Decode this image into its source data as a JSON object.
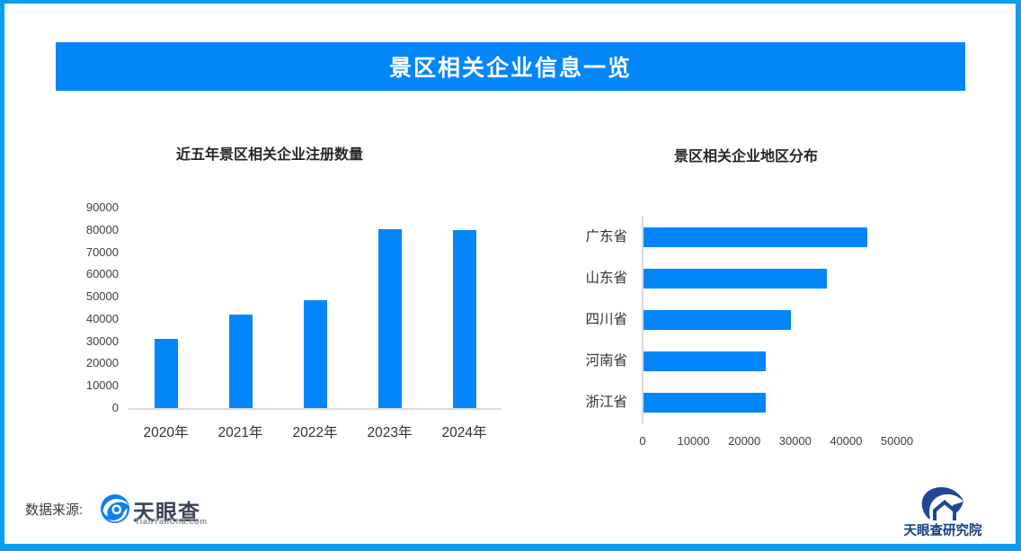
{
  "banner": {
    "title": "景区相关企业信息一览"
  },
  "colors": {
    "accent_blue": "#0486fb",
    "border_blue": "#0a9ef3",
    "axis_line": "#d9d9d9"
  },
  "footer": {
    "source_label": "数据来源:",
    "tyc_logo_text": "天眼查",
    "tyc_logo_subtext": "TianYanCha.com",
    "research_logo_text": "天眼查研究院"
  },
  "chart_data": [
    {
      "type": "bar",
      "title": "近五年景区相关企业注册数量",
      "categories": [
        "2020年",
        "2021年",
        "2022年",
        "2023年",
        "2024年"
      ],
      "values": [
        31000,
        42000,
        48500,
        80500,
        80000
      ],
      "xlabel": "",
      "ylabel": "",
      "ylim": [
        0,
        90000
      ],
      "ytick_step": 10000,
      "grid": false,
      "legend": "none",
      "bar_color": "#0486fb"
    },
    {
      "type": "bar",
      "orientation": "horizontal",
      "title": "景区相关企业地区分布",
      "categories": [
        "广东省",
        "山东省",
        "四川省",
        "河南省",
        "浙江省"
      ],
      "values": [
        44000,
        36000,
        29000,
        24000,
        24000
      ],
      "xlabel": "",
      "ylabel": "",
      "xlim": [
        0,
        50000
      ],
      "xtick_step": 10000,
      "grid": false,
      "legend": "none",
      "bar_color": "#0486fb"
    }
  ]
}
